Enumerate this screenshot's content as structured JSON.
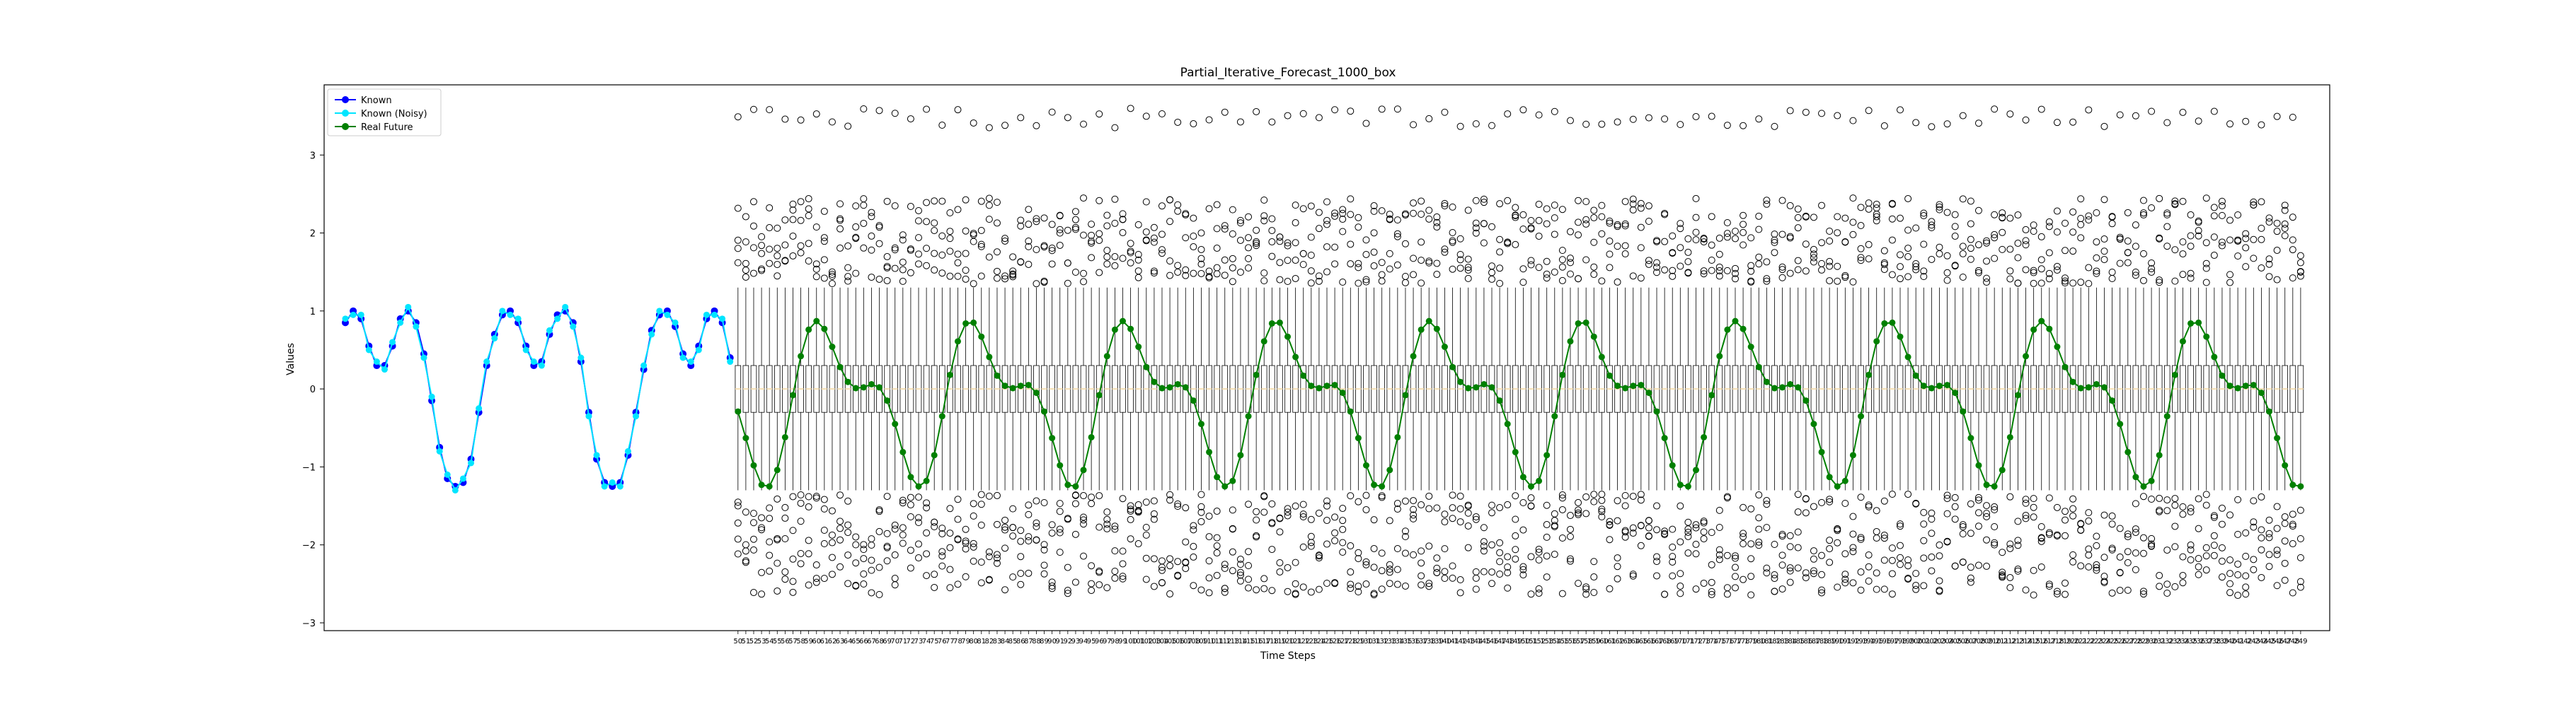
{
  "chart_data": {
    "type": "line",
    "title": "Partial_Iterative_Forecast_1000_box",
    "xlabel": "Time Steps",
    "ylabel": "Values",
    "ylim": [
      -3.1,
      3.9
    ],
    "yticks": [
      -3,
      -2,
      -1,
      0,
      1,
      2,
      3
    ],
    "x_known": [
      0,
      1,
      2,
      3,
      4,
      5,
      6,
      7,
      8,
      9,
      10,
      11,
      12,
      13,
      14,
      15,
      16,
      17,
      18,
      19,
      20,
      21,
      22,
      23,
      24,
      25,
      26,
      27,
      28,
      29,
      30,
      31,
      32,
      33,
      34,
      35,
      36,
      37,
      38,
      39,
      40,
      41,
      42,
      43,
      44,
      45,
      46,
      47,
      48,
      49
    ],
    "series": [
      {
        "name": "Known",
        "color": "#0000ff",
        "marker": "o",
        "values": [
          0.85,
          1.0,
          0.9,
          0.55,
          0.3,
          0.3,
          0.55,
          0.9,
          1.0,
          0.85,
          0.45,
          -0.15,
          -0.75,
          -1.15,
          -1.25,
          -1.2,
          -0.9,
          -0.3,
          0.3,
          0.7,
          0.95,
          1.0,
          0.85,
          0.55,
          0.3,
          0.35,
          0.7,
          0.95,
          1.0,
          0.85,
          0.35,
          -0.3,
          -0.9,
          -1.2,
          -1.25,
          -1.2,
          -0.85,
          -0.3,
          0.25,
          0.75,
          0.95,
          1.0,
          0.8,
          0.45,
          0.3,
          0.55,
          0.9,
          1.0,
          0.85,
          0.4
        ]
      },
      {
        "name": "Known (Noisy)",
        "color": "#00e5ff",
        "marker": "o",
        "values": [
          0.9,
          0.95,
          0.95,
          0.5,
          0.35,
          0.25,
          0.6,
          0.85,
          1.05,
          0.8,
          0.4,
          -0.1,
          -0.8,
          -1.1,
          -1.3,
          -1.15,
          -0.95,
          -0.25,
          0.35,
          0.65,
          1.0,
          0.95,
          0.9,
          0.5,
          0.35,
          0.3,
          0.75,
          0.9,
          1.05,
          0.8,
          0.4,
          -0.35,
          -0.85,
          -1.25,
          -1.2,
          -1.25,
          -0.8,
          -0.35,
          0.3,
          0.7,
          1.0,
          0.95,
          0.85,
          0.4,
          0.35,
          0.5,
          0.95,
          0.95,
          0.9,
          0.35
        ]
      },
      {
        "name": "Real Future",
        "color": "#008000",
        "marker": "o",
        "values": []
      }
    ],
    "x_future_start": 50,
    "x_future_end": 249,
    "box_median": 0.0,
    "box_q1": -0.3,
    "box_q3": 0.3,
    "box_whisker_low": -1.3,
    "box_whisker_high": 1.3,
    "box_color": "#f5deb3",
    "legend_position": "upper left",
    "grid": false
  }
}
